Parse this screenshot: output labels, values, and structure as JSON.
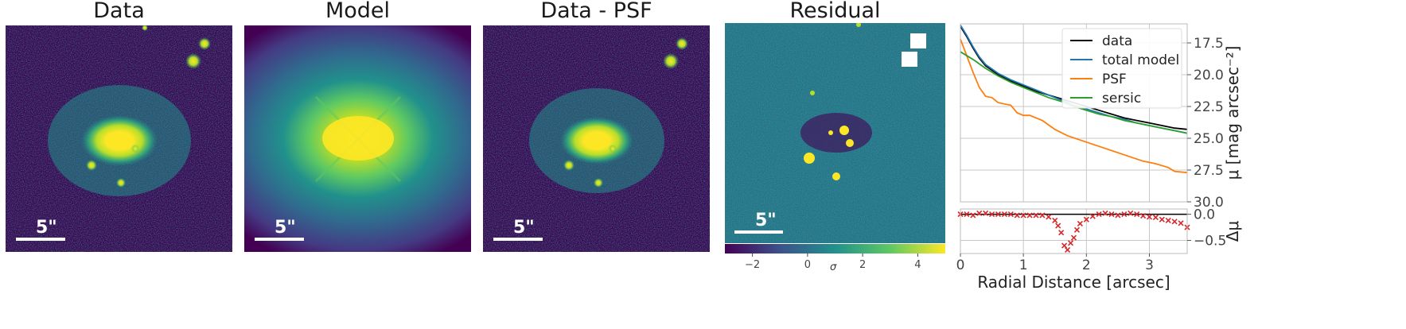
{
  "panels": [
    {
      "title": "Data",
      "scalebar_label": "5\""
    },
    {
      "title": "Model",
      "scalebar_label": "5\""
    },
    {
      "title": "Data - PSF",
      "scalebar_label": "5\""
    },
    {
      "title": "Residual",
      "scalebar_label": "5\""
    }
  ],
  "colorbar": {
    "label": "σ",
    "ticks": [
      "−2",
      "0",
      "2",
      "4"
    ],
    "tick_values": [
      -2,
      0,
      2,
      4
    ],
    "range": [
      -3,
      5
    ]
  },
  "colors": {
    "viridis_dark": "#440154",
    "viridis_teal": "#21918c",
    "viridis_green": "#5ec962",
    "viridis_yellow": "#fde725"
  },
  "chart_data": [
    {
      "type": "line",
      "xlim": [
        0,
        3.6
      ],
      "ylim": [
        30.0,
        16.0
      ],
      "y_inverted": true,
      "ylabel": "μ [mag arcsec⁻²]",
      "yticks": [
        17.5,
        20.0,
        22.5,
        25.0,
        27.5,
        30.0
      ],
      "ytick_labels": [
        "17.5",
        "20.0",
        "22.5",
        "25.0",
        "27.5",
        "30.0"
      ],
      "grid": true,
      "legend_position": "top-right",
      "series": [
        {
          "name": "data",
          "color": "#000000",
          "x": [
            0.0,
            0.1,
            0.2,
            0.3,
            0.4,
            0.6,
            0.8,
            1.0,
            1.2,
            1.4,
            1.6,
            1.8,
            2.0,
            2.2,
            2.4,
            2.6,
            2.8,
            3.0,
            3.2,
            3.4,
            3.6
          ],
          "y": [
            16.2,
            17.0,
            17.9,
            18.7,
            19.3,
            20.0,
            20.5,
            20.9,
            21.3,
            21.6,
            21.9,
            22.2,
            22.5,
            22.8,
            23.1,
            23.4,
            23.6,
            23.8,
            24.0,
            24.2,
            24.3
          ]
        },
        {
          "name": "total model",
          "color": "#1f77b4",
          "x": [
            0.0,
            0.1,
            0.2,
            0.3,
            0.4,
            0.6,
            0.8,
            1.0,
            1.2,
            1.4,
            1.6,
            1.8,
            2.0,
            2.2,
            2.4,
            2.6,
            2.8,
            3.0,
            3.2,
            3.4,
            3.6
          ],
          "y": [
            16.1,
            16.9,
            17.8,
            18.6,
            19.2,
            19.9,
            20.4,
            20.8,
            21.2,
            21.6,
            22.0,
            22.4,
            22.7,
            23.0,
            23.3,
            23.5,
            23.8,
            24.0,
            24.2,
            24.4,
            24.6
          ]
        },
        {
          "name": "PSF",
          "color": "#ff7f0e",
          "x": [
            0.0,
            0.1,
            0.2,
            0.3,
            0.4,
            0.5,
            0.6,
            0.8,
            0.9,
            1.0,
            1.1,
            1.3,
            1.5,
            1.7,
            2.0,
            2.3,
            2.6,
            2.9,
            3.1,
            3.3,
            3.4,
            3.6
          ],
          "y": [
            17.2,
            18.5,
            19.8,
            21.0,
            21.7,
            21.8,
            22.2,
            22.4,
            23.0,
            23.2,
            23.2,
            23.6,
            24.3,
            24.8,
            25.3,
            25.8,
            26.3,
            26.8,
            27.0,
            27.3,
            27.6,
            27.7
          ]
        },
        {
          "name": "sersic",
          "color": "#2ca02c",
          "x": [
            0.0,
            0.2,
            0.4,
            0.6,
            0.8,
            1.0,
            1.2,
            1.4,
            1.6,
            1.8,
            2.0,
            2.2,
            2.4,
            2.6,
            2.8,
            3.0,
            3.2,
            3.4,
            3.6
          ],
          "y": [
            18.2,
            18.8,
            19.5,
            20.1,
            20.6,
            21.0,
            21.4,
            21.8,
            22.1,
            22.5,
            22.8,
            23.1,
            23.3,
            23.6,
            23.8,
            24.0,
            24.2,
            24.4,
            24.6
          ]
        }
      ]
    },
    {
      "type": "scatter",
      "xlim": [
        0,
        3.6
      ],
      "ylim": [
        -0.75,
        0.1
      ],
      "xlabel": "Radial Distance [arcsec]",
      "ylabel": "Δμ",
      "xticks": [
        0,
        1,
        2,
        3
      ],
      "xtick_labels": [
        "0",
        "1",
        "2",
        "3"
      ],
      "yticks": [
        0.0,
        -0.5
      ],
      "ytick_labels": [
        "0.0",
        "−0.5"
      ],
      "grid": true,
      "reference_line": 0,
      "series": [
        {
          "marker": "x",
          "color": "#d62728",
          "x": [
            0.0,
            0.1,
            0.2,
            0.3,
            0.4,
            0.5,
            0.6,
            0.7,
            0.8,
            0.9,
            1.0,
            1.1,
            1.2,
            1.3,
            1.4,
            1.5,
            1.55,
            1.6,
            1.65,
            1.7,
            1.75,
            1.8,
            1.85,
            1.9,
            2.0,
            2.1,
            2.2,
            2.3,
            2.4,
            2.5,
            2.6,
            2.7,
            2.8,
            2.9,
            3.0,
            3.1,
            3.2,
            3.3,
            3.4,
            3.5,
            3.6
          ],
          "y": [
            0.0,
            0.0,
            -0.02,
            0.02,
            0.02,
            0.0,
            0.0,
            0.0,
            0.0,
            -0.02,
            -0.02,
            -0.02,
            -0.02,
            -0.02,
            -0.05,
            -0.12,
            -0.22,
            -0.35,
            -0.6,
            -0.68,
            -0.55,
            -0.45,
            -0.3,
            -0.18,
            -0.1,
            -0.04,
            0.0,
            0.02,
            0.0,
            -0.02,
            0.0,
            0.02,
            0.0,
            -0.03,
            -0.05,
            -0.06,
            -0.1,
            -0.12,
            -0.14,
            -0.17,
            -0.25
          ]
        }
      ]
    }
  ]
}
